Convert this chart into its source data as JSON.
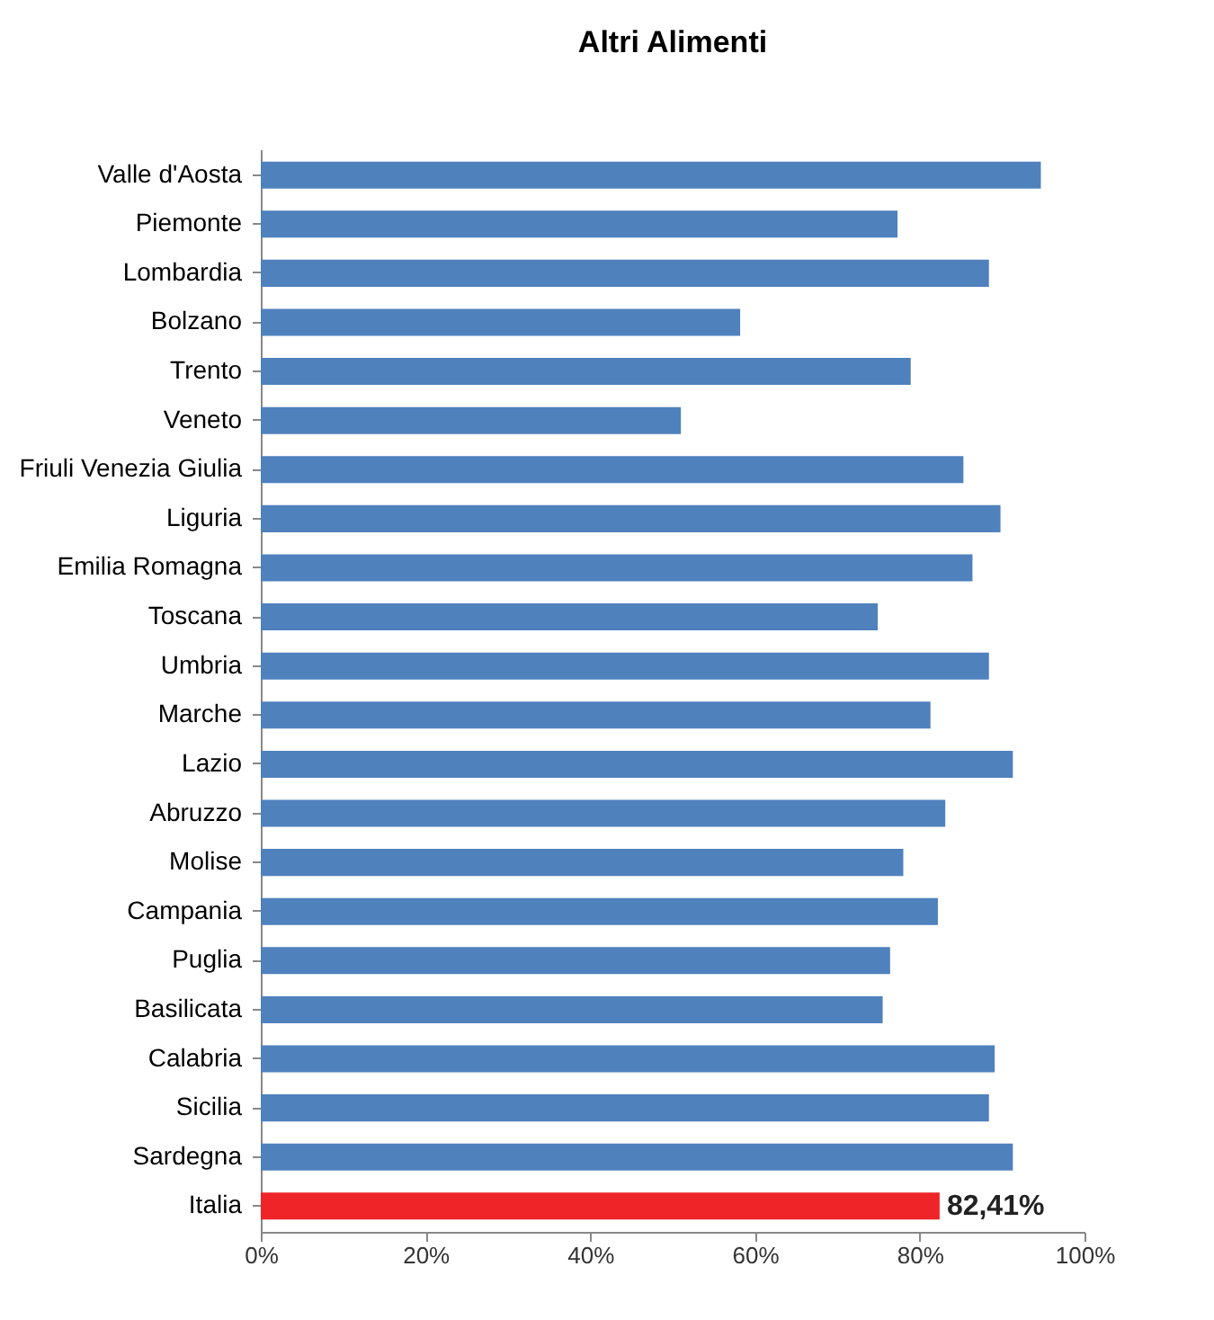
{
  "chart_data": {
    "type": "bar",
    "orientation": "horizontal",
    "title": "Altri Alimenti",
    "categories": [
      "Valle d'Aosta",
      "Piemonte",
      "Lombardia",
      "Bolzano",
      "Trento",
      "Veneto",
      "Friuli Venezia Giulia",
      "Liguria",
      "Emilia Romagna",
      "Toscana",
      "Umbria",
      "Marche",
      "Lazio",
      "Abruzzo",
      "Molise",
      "Campania",
      "Puglia",
      "Basilicata",
      "Calabria",
      "Sicilia",
      "Sardegna",
      "Italia"
    ],
    "values": [
      94.7,
      77.3,
      88.4,
      58.2,
      78.9,
      51.0,
      85.3,
      89.8,
      86.4,
      74.9,
      88.4,
      81.3,
      91.3,
      83.1,
      78.0,
      82.2,
      76.4,
      75.5,
      89.1,
      88.4,
      91.3,
      82.41
    ],
    "colors": [
      "#4f81bd",
      "#4f81bd",
      "#4f81bd",
      "#4f81bd",
      "#4f81bd",
      "#4f81bd",
      "#4f81bd",
      "#4f81bd",
      "#4f81bd",
      "#4f81bd",
      "#4f81bd",
      "#4f81bd",
      "#4f81bd",
      "#4f81bd",
      "#4f81bd",
      "#4f81bd",
      "#4f81bd",
      "#4f81bd",
      "#4f81bd",
      "#4f81bd",
      "#4f81bd",
      "#ee2428"
    ],
    "value_labels": [
      null,
      null,
      null,
      null,
      null,
      null,
      null,
      null,
      null,
      null,
      null,
      null,
      null,
      null,
      null,
      null,
      null,
      null,
      null,
      null,
      null,
      "82,41%"
    ],
    "xlim": [
      0,
      100
    ],
    "xticks": [
      {
        "value": 0,
        "label": "0%"
      },
      {
        "value": 20,
        "label": "20%"
      },
      {
        "value": 40,
        "label": "40%"
      },
      {
        "value": 60,
        "label": "60%"
      },
      {
        "value": 80,
        "label": "80%"
      },
      {
        "value": 100,
        "label": "100%"
      }
    ],
    "grid": false
  }
}
